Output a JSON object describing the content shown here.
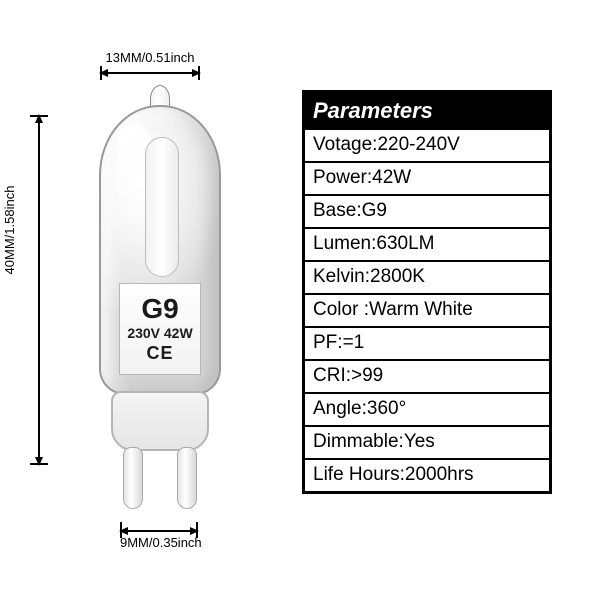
{
  "dimensions": {
    "top": "13MM/0.51inch",
    "left": "40MM/1.58inch",
    "bottom": "9MM/0.35inch"
  },
  "bulb_label": {
    "base": "G9",
    "spec": "230V 42W",
    "mark": "CE"
  },
  "parameters": {
    "header": "Parameters",
    "rows": [
      {
        "label": "Votage",
        "value": "220-240V"
      },
      {
        "label": "Power",
        "value": "42W"
      },
      {
        "label": "Base",
        "value": "G9"
      },
      {
        "label": "Lumen",
        "value": "630LM"
      },
      {
        "label": "Kelvin",
        "value": "2800K"
      },
      {
        "label": "Color ",
        "value": "Warm White"
      },
      {
        "label": "PF",
        "value": "=1"
      },
      {
        "label": "CRI",
        "value": ">99"
      },
      {
        "label": "Angle",
        "value": "360°"
      },
      {
        "label": "Dimmable",
        "value": "Yes"
      },
      {
        "label": "Life Hours",
        "value": "2000hrs"
      }
    ]
  },
  "colors": {
    "table_border": "#000000",
    "header_bg": "#000000",
    "header_fg": "#ffffff",
    "row_fg": "#000000",
    "background": "#ffffff"
  }
}
